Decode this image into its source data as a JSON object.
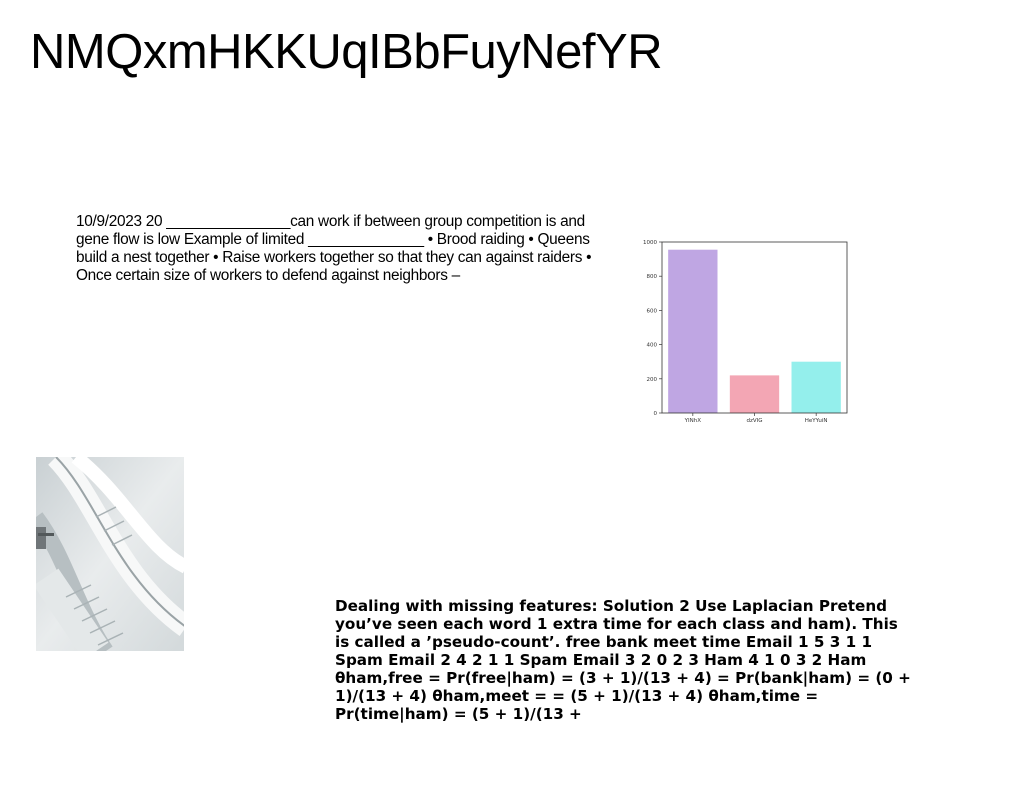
{
  "title": "NMQxmHKKUqIBbFuyNefYR",
  "paragraph_1": "10/9/2023 20 _______________can work if between group competition is and gene flow is low Example of limited ______________ • Brood raiding • Queens build a nest together • Raise workers together so that they can against raiders • Once certain size of workers to defend against neighbors –",
  "paragraph_2": "Dealing with missing features: Solution 2 Use Laplacian Pretend you’ve seen each word 1 extra time for each class and ham). This is called a ’pseudo-count’. free bank meet time Email 1 5 3 1 1 Spam Email 2 4 2 1 1 Spam Email 3 2 0 2 3 Ham 4 1 0 3 2 Ham θham,free = Pr(free|ham) = (3 + 1)/(13 + 4) = Pr(bank|ham) = (0 + 1)/(13 + 4) θham,meet = = (5 + 1)/(13 + 4) θham,time = Pr(time|ham) = (5 + 1)/(13 +",
  "photo": {
    "description_icon": "spiral-staircase-photo"
  },
  "chart_data": {
    "type": "bar",
    "categories": [
      "YINhX",
      "dzVIG",
      "HeYYuiN"
    ],
    "values": [
      955,
      220,
      300
    ],
    "colors": [
      "#bfa6e3",
      "#f3a6b4",
      "#94efec"
    ],
    "ylim": [
      0,
      1000
    ],
    "yticks": [
      0,
      200,
      400,
      600,
      800,
      1000
    ],
    "grid": false,
    "title": "",
    "xlabel": "",
    "ylabel": ""
  }
}
